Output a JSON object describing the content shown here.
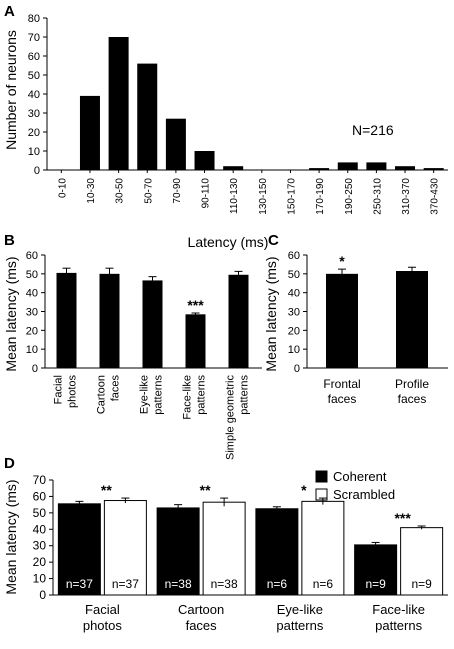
{
  "panel_letters": [
    "A",
    "B",
    "C",
    "D"
  ],
  "chart_data": [
    {
      "panel": "A",
      "type": "bar",
      "ylabel": "Number of neurons",
      "xlabel": "Latency (ms)",
      "ylim": [
        0,
        80
      ],
      "yticks": [
        0,
        10,
        20,
        30,
        40,
        50,
        60,
        70,
        80
      ],
      "categories": [
        "0-10",
        "10-30",
        "30-50",
        "50-70",
        "70-90",
        "90-110",
        "110-130",
        "130-150",
        "150-170",
        "170-190",
        "190-250",
        "250-310",
        "310-370",
        "370-430"
      ],
      "values": [
        0,
        39,
        70,
        56,
        27,
        10,
        2,
        0,
        0,
        1,
        4,
        4,
        2,
        1
      ],
      "annotations": [
        {
          "text": "N=216"
        }
      ],
      "color": "#000000"
    },
    {
      "panel": "B",
      "type": "bar",
      "ylabel": "Mean latency (ms)",
      "ylim": [
        0,
        60
      ],
      "yticks": [
        0,
        10,
        20,
        30,
        40,
        50,
        60
      ],
      "categories": [
        "Facial photos",
        "Cartoon faces",
        "Eye-like patterns",
        "Face-like patterns",
        "Simple geometric patterns"
      ],
      "category_lines": [
        [
          "Facial",
          "photos"
        ],
        [
          "Cartoon",
          "faces"
        ],
        [
          "Eye-like",
          "patterns"
        ],
        [
          "Face-like",
          "patterns"
        ],
        [
          "Simple geometric",
          "patterns"
        ]
      ],
      "values": [
        50.5,
        50,
        46.5,
        28.5,
        49.5
      ],
      "errors": [
        2.5,
        3,
        2,
        0.7,
        1.8
      ],
      "significance": [
        "",
        "",
        "",
        "***",
        ""
      ],
      "color": "#000000"
    },
    {
      "panel": "C",
      "type": "bar",
      "ylabel": "Mean latency (ms)",
      "ylim": [
        0,
        60
      ],
      "yticks": [
        0,
        10,
        20,
        30,
        40,
        50,
        60
      ],
      "categories": [
        "Frontal faces",
        "Profile faces"
      ],
      "category_lines": [
        [
          "Frontal",
          "faces"
        ],
        [
          "Profile",
          "faces"
        ]
      ],
      "values": [
        50,
        51.5
      ],
      "errors": [
        2.5,
        2
      ],
      "significance": [
        "*",
        ""
      ],
      "color": "#000000"
    },
    {
      "panel": "D",
      "type": "bar",
      "ylabel": "Mean latency (ms)",
      "ylim": [
        0,
        70
      ],
      "yticks": [
        0,
        10,
        20,
        30,
        40,
        50,
        60,
        70
      ],
      "categories": [
        "Facial photos",
        "Cartoon faces",
        "Eye-like patterns",
        "Face-like patterns"
      ],
      "category_lines": [
        [
          "Facial",
          "photos"
        ],
        [
          "Cartoon",
          "faces"
        ],
        [
          "Eye-like",
          "patterns"
        ],
        [
          "Face-like",
          "patterns"
        ]
      ],
      "series": [
        {
          "name": "Coherent",
          "color": "#000000",
          "values": [
            55.5,
            53,
            52.5,
            30.5
          ],
          "errors": [
            1.5,
            2,
            1.2,
            1.5
          ],
          "n_labels": [
            "n=37",
            "n=38",
            "n=6",
            "n=9"
          ]
        },
        {
          "name": "Scrambled",
          "color": "#ffffff",
          "values": [
            57.5,
            56.5,
            57,
            41
          ],
          "errors": [
            1.5,
            2.5,
            2,
            1
          ],
          "n_labels": [
            "n=37",
            "n=38",
            "n=6",
            "n=9"
          ]
        }
      ],
      "significance": [
        "**",
        "**",
        "*",
        "***"
      ],
      "legend_position": "top-right"
    }
  ]
}
